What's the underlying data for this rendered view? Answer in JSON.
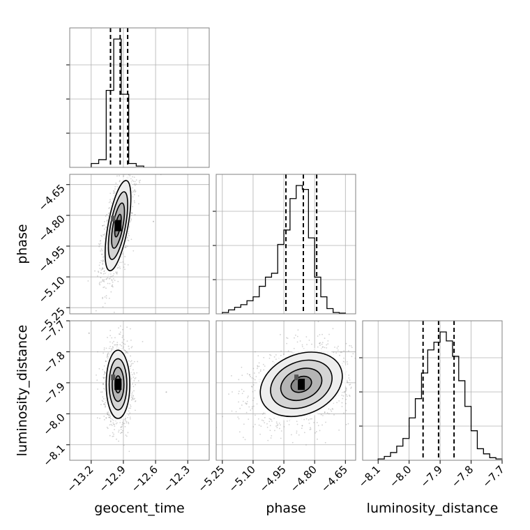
{
  "chart_data": {
    "type": "corner",
    "parameters": [
      "geocent_time",
      "phase",
      "luminosity_distance"
    ],
    "labels": {
      "geocent_time": "geocent_time",
      "phase": "phase",
      "luminosity_distance": "luminosity_distance"
    },
    "ticks": {
      "geocent_time": [
        "−13.2",
        "−12.9",
        "−12.6",
        "−12.3"
      ],
      "phase": [
        "−5.25",
        "−5.10",
        "−4.95",
        "−4.80",
        "−4.65"
      ],
      "luminosity_distance": [
        "−8.1",
        "−8.0",
        "−7.9",
        "−7.8",
        "−7.7"
      ]
    },
    "tick_values": {
      "geocent_time": [
        -13.2,
        -12.9,
        -12.6,
        -12.3
      ],
      "phase": [
        -5.25,
        -5.1,
        -4.95,
        -4.8,
        -4.65
      ],
      "luminosity_distance": [
        -8.1,
        -8.0,
        -7.9,
        -7.8,
        -7.7
      ]
    },
    "ranges": {
      "geocent_time": [
        -13.4,
        -12.1
      ],
      "phase": [
        -5.28,
        -4.6
      ],
      "luminosity_distance": [
        -8.15,
        -7.7
      ]
    },
    "quantiles": {
      "geocent_time": [
        -13.02,
        -12.93,
        -12.86
      ],
      "phase": [
        -4.94,
        -4.855,
        -4.79
      ],
      "luminosity_distance": [
        -7.955,
        -7.905,
        -7.855
      ]
    },
    "histograms": {
      "geocent_time": {
        "bin_edges": [
          -13.2,
          -13.13,
          -13.06,
          -12.99,
          -12.92,
          -12.85,
          -12.78,
          -12.71
        ],
        "heights": [
          0.03,
          0.06,
          0.6,
          1.0,
          0.57,
          0.03,
          0.01
        ]
      },
      "phase": {
        "bin_edges": [
          -5.25,
          -5.22,
          -5.19,
          -5.16,
          -5.13,
          -5.1,
          -5.07,
          -5.04,
          -5.01,
          -4.98,
          -4.95,
          -4.92,
          -4.89,
          -4.86,
          -4.83,
          -4.8,
          -4.77,
          -4.74,
          -4.71,
          -4.68,
          -4.65
        ],
        "heights": [
          0.01,
          0.03,
          0.05,
          0.07,
          0.1,
          0.13,
          0.21,
          0.28,
          0.31,
          0.53,
          0.64,
          0.88,
          0.98,
          0.95,
          0.58,
          0.28,
          0.13,
          0.04,
          0.01,
          0.005
        ]
      },
      "luminosity_distance": {
        "bin_edges": [
          -8.1,
          -8.08,
          -8.06,
          -8.04,
          -8.02,
          -8.0,
          -7.98,
          -7.96,
          -7.94,
          -7.92,
          -7.9,
          -7.88,
          -7.86,
          -7.84,
          -7.82,
          -7.8,
          -7.78,
          -7.76,
          -7.74,
          -7.72,
          -7.7
        ],
        "heights": [
          0.01,
          0.03,
          0.06,
          0.11,
          0.17,
          0.33,
          0.48,
          0.68,
          0.86,
          0.92,
          1.0,
          0.93,
          0.81,
          0.62,
          0.42,
          0.23,
          0.09,
          0.05,
          0.02,
          0.01
        ]
      }
    },
    "pairs": [
      {
        "x": "geocent_time",
        "y": "phase",
        "mean": [
          -12.95,
          -4.85
        ],
        "sigma": [
          0.06,
          0.11
        ],
        "rho": 0.62,
        "n_points": 1600,
        "outliers": [
          [
            -12.55,
            -4.6
          ],
          [
            -12.62,
            -4.83
          ]
        ]
      },
      {
        "x": "geocent_time",
        "y": "luminosity_distance",
        "mean": [
          -12.95,
          -7.905
        ],
        "sigma": [
          0.055,
          0.055
        ],
        "rho": 0.0,
        "n_points": 1400,
        "outliers": [
          [
            -12.5,
            -7.93
          ],
          [
            -13.22,
            -7.74
          ]
        ]
      },
      {
        "x": "phase",
        "y": "luminosity_distance",
        "mean": [
          -4.865,
          -7.905
        ],
        "sigma": [
          0.1,
          0.052
        ],
        "rho": 0.25,
        "n_points": 1700,
        "outliers": []
      }
    ],
    "contour_levels_sigma": [
      0.5,
      1.0,
      1.5,
      2.0
    ],
    "grid": true,
    "colors": {
      "line": "#000000",
      "scatter": "#7a7a7a",
      "grid": "#b0b0b0",
      "frame": "#808080"
    }
  }
}
